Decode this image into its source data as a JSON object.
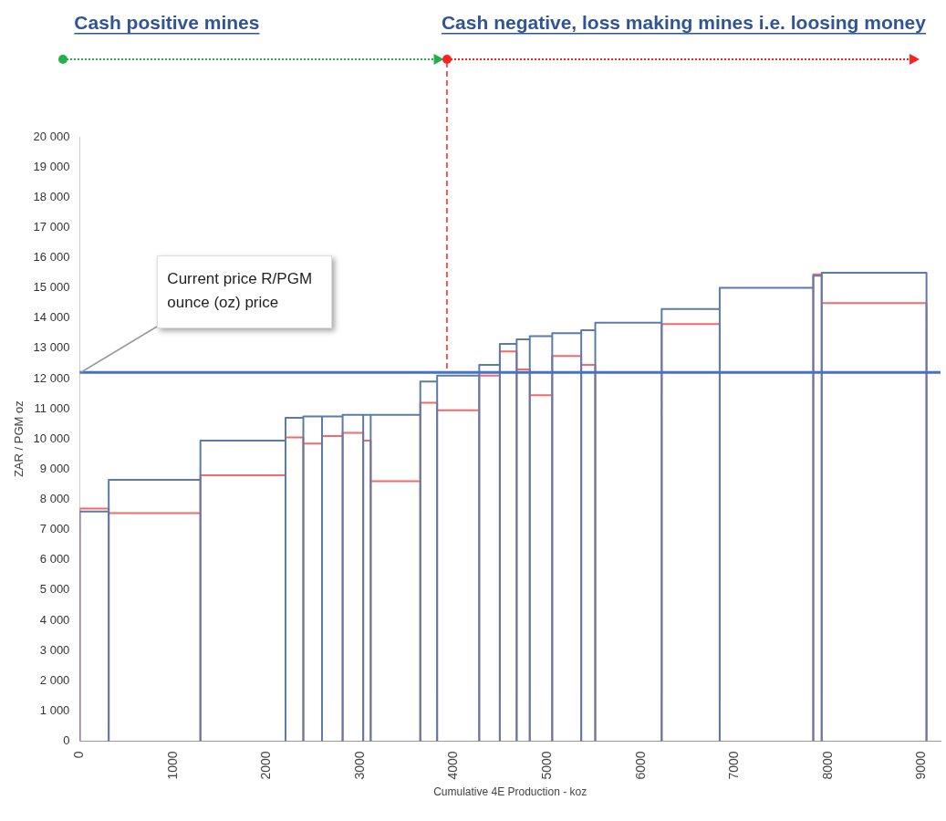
{
  "chart_data": {
    "type": "histogram",
    "xlabel": "Cumulative 4E Production - koz",
    "ylabel": "ZAR / PGM oz",
    "bins": [
      0,
      310,
      1290,
      2200,
      2390,
      2590,
      2810,
      3030,
      3110,
      3640,
      3820,
      4270,
      4490,
      4670,
      4810,
      5050,
      5360,
      5510,
      6220,
      6840,
      7840,
      7930,
      9050
    ],
    "series": [
      {
        "color": "#5b7bab",
        "values": [
          7600,
          8650,
          9950,
          10700,
          10750,
          10750,
          10800,
          10800,
          10800,
          11900,
          12100,
          12450,
          13150,
          13300,
          13400,
          13500,
          13600,
          13850,
          14300,
          15000,
          15400,
          15500
        ]
      },
      {
        "color": "#f26a6a",
        "values": [
          7700,
          7550,
          8800,
          10050,
          9850,
          10100,
          10200,
          9950,
          8600,
          11200,
          10950,
          12100,
          12900,
          12300,
          11450,
          12750,
          12450,
          null,
          13800,
          null,
          15450,
          14500
        ]
      }
    ],
    "xlim": [
      0,
      9200
    ],
    "xticks": [
      0,
      1000,
      2000,
      3000,
      4000,
      5000,
      6000,
      7000,
      8000,
      9000
    ],
    "ylim": [
      0,
      20000
    ],
    "yticks": [
      {
        "value": 0,
        "label": "0"
      },
      {
        "value": 1000,
        "label": "1 000"
      },
      {
        "value": 2000,
        "label": "2 000"
      },
      {
        "value": 3000,
        "label": "3 000"
      },
      {
        "value": 4000,
        "label": "4 000"
      },
      {
        "value": 5000,
        "label": "5 000"
      },
      {
        "value": 6000,
        "label": "6 000"
      },
      {
        "value": 7000,
        "label": "7 000"
      },
      {
        "value": 8000,
        "label": "8 000"
      },
      {
        "value": 9000,
        "label": "9 000"
      },
      {
        "value": 10000,
        "label": "10 000"
      },
      {
        "value": 11000,
        "label": "11 000"
      },
      {
        "value": 12000,
        "label": "12 000"
      },
      {
        "value": 13000,
        "label": "13 000"
      },
      {
        "value": 14000,
        "label": "14 000"
      },
      {
        "value": 15000,
        "label": "15 000"
      },
      {
        "value": 16000,
        "label": "16 000"
      },
      {
        "value": 17000,
        "label": "17 000"
      },
      {
        "value": 18000,
        "label": "18 000"
      },
      {
        "value": 19000,
        "label": "19 000"
      },
      {
        "value": 20000,
        "label": "20 000"
      }
    ],
    "ref_lines": [
      {
        "axis": "y",
        "value": 12200,
        "color": "#4472c4"
      },
      {
        "axis": "x",
        "value": 3925,
        "color": "#ff2020",
        "line_style": "dashed"
      }
    ],
    "annotations": [
      "Cash positive mines",
      "Cash negative, loss making mines i.e. loosing money",
      {
        "text": "Current price R/PGM ounce (oz) price",
        "x": 0,
        "y": 12200
      }
    ],
    "grid": false,
    "legend": false
  }
}
